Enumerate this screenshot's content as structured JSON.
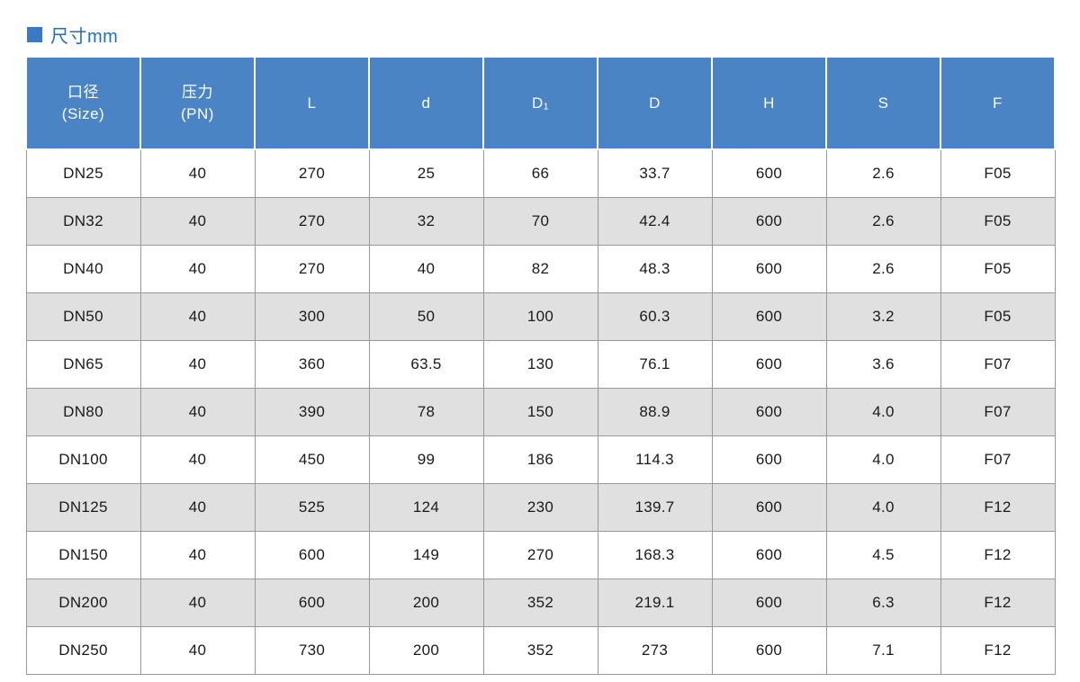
{
  "title": "尺寸mm",
  "colors": {
    "header_bg": "#4a84c4",
    "title_color": "#1c70c4",
    "title_square": "#3b79c4",
    "stripe_bg": "#e0e0e0",
    "grid_border": "#999999"
  },
  "table": {
    "headers": [
      "口径\n(Size)",
      "压力\n(PN)",
      "L",
      "d",
      "D₁",
      "D",
      "H",
      "S",
      "F"
    ],
    "rows": [
      [
        "DN25",
        "40",
        "270",
        "25",
        "66",
        "33.7",
        "600",
        "2.6",
        "F05"
      ],
      [
        "DN32",
        "40",
        "270",
        "32",
        "70",
        "42.4",
        "600",
        "2.6",
        "F05"
      ],
      [
        "DN40",
        "40",
        "270",
        "40",
        "82",
        "48.3",
        "600",
        "2.6",
        "F05"
      ],
      [
        "DN50",
        "40",
        "300",
        "50",
        "100",
        "60.3",
        "600",
        "3.2",
        "F05"
      ],
      [
        "DN65",
        "40",
        "360",
        "63.5",
        "130",
        "76.1",
        "600",
        "3.6",
        "F07"
      ],
      [
        "DN80",
        "40",
        "390",
        "78",
        "150",
        "88.9",
        "600",
        "4.0",
        "F07"
      ],
      [
        "DN100",
        "40",
        "450",
        "99",
        "186",
        "114.3",
        "600",
        "4.0",
        "F07"
      ],
      [
        "DN125",
        "40",
        "525",
        "124",
        "230",
        "139.7",
        "600",
        "4.0",
        "F12"
      ],
      [
        "DN150",
        "40",
        "600",
        "149",
        "270",
        "168.3",
        "600",
        "4.5",
        "F12"
      ],
      [
        "DN200",
        "40",
        "600",
        "200",
        "352",
        "219.1",
        "600",
        "6.3",
        "F12"
      ],
      [
        "DN250",
        "40",
        "730",
        "200",
        "352",
        "273",
        "600",
        "7.1",
        "F12"
      ]
    ]
  }
}
